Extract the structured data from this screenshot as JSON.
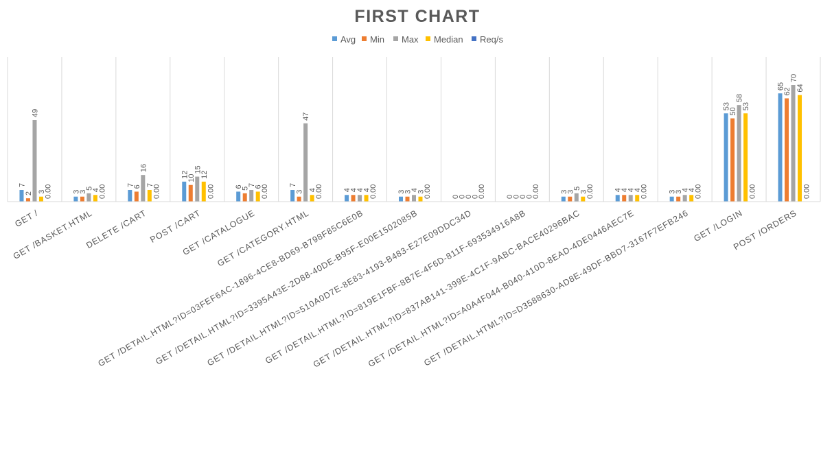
{
  "chart_data": {
    "type": "bar",
    "title": "FIRST CHART",
    "xlabel": "",
    "ylabel": "",
    "ylim": [
      0,
      75
    ],
    "legend_position": "top",
    "grid": "vertical category separators",
    "categories": [
      "GET /",
      "GET /BASKET.HTML",
      "DELETE /CART",
      "POST /CART",
      "GET /CATALOGUE",
      "GET /CATEGORY.HTML",
      "GET /DETAIL.HTML?ID=03FEF6AC-1896-4CE8-BD69-B798F85C6E0B",
      "GET /DETAIL.HTML?ID=3395A43E-2D88-40DE-B95F-E00E1502085B",
      "GET /DETAIL.HTML?ID=510A0D7E-8E83-4193-B483-E27E09DDC34D",
      "GET /DETAIL.HTML?ID=819E1FBF-8B7E-4F6D-811F-693534916A8B",
      "GET /DETAIL.HTML?ID=837AB141-399E-4C1F-9ABC-BACE40296BAC",
      "GET /DETAIL.HTML?ID=A0A4F044-B040-410D-8EAD-4DE0446AEC7E",
      "GET /DETAIL.HTML?ID=D3588630-AD8E-49DF-BBD7-3167F7EFB246",
      "GET /LOGIN",
      "POST /ORDERS"
    ],
    "series": [
      {
        "name": "Avg",
        "color": "#5B9BD5",
        "values": [
          7,
          3,
          7,
          12,
          6,
          7,
          4,
          3,
          0,
          0,
          3,
          4,
          3,
          53,
          65
        ],
        "labels": [
          "7",
          "3",
          "7",
          "12",
          "6",
          "7",
          "4",
          "3",
          "0",
          "0",
          "3",
          "4",
          "3",
          "53",
          "65"
        ]
      },
      {
        "name": "Min",
        "color": "#ED7D31",
        "values": [
          2,
          3,
          6,
          10,
          5,
          3,
          4,
          3,
          0,
          0,
          3,
          4,
          3,
          50,
          62
        ],
        "labels": [
          "2",
          "3",
          "6",
          "10",
          "5",
          "3",
          "4",
          "3",
          "0",
          "0",
          "3",
          "4",
          "3",
          "50",
          "62"
        ]
      },
      {
        "name": "Max",
        "color": "#A5A5A5",
        "values": [
          49,
          5,
          16,
          15,
          7,
          47,
          4,
          4,
          0,
          0,
          5,
          4,
          4,
          58,
          70
        ],
        "labels": [
          "49",
          "5",
          "16",
          "15",
          "7",
          "47",
          "4",
          "4",
          "0",
          "0",
          "5",
          "4",
          "4",
          "58",
          "70"
        ]
      },
      {
        "name": "Median",
        "color": "#FFC000",
        "values": [
          3,
          4,
          7,
          12,
          6,
          4,
          4,
          3,
          0,
          0,
          3,
          4,
          4,
          53,
          64
        ],
        "labels": [
          "3",
          "4",
          "7",
          "12",
          "6",
          "4",
          "4",
          "3",
          "0",
          "0",
          "3",
          "4",
          "4",
          "53",
          "64"
        ]
      },
      {
        "name": "Req/s",
        "color": "#4472C4",
        "values": [
          0,
          0,
          0,
          0,
          0,
          0,
          0,
          0,
          0,
          0,
          0,
          0,
          0,
          0,
          0
        ],
        "labels": [
          "0.00",
          "0.00",
          "0.00",
          "0.00",
          "0.00",
          "0.00",
          "0.00",
          "0.00",
          "0.00",
          "0.00",
          "0.00",
          "0.00",
          "0.00",
          "0.00",
          "0.00"
        ]
      }
    ]
  }
}
